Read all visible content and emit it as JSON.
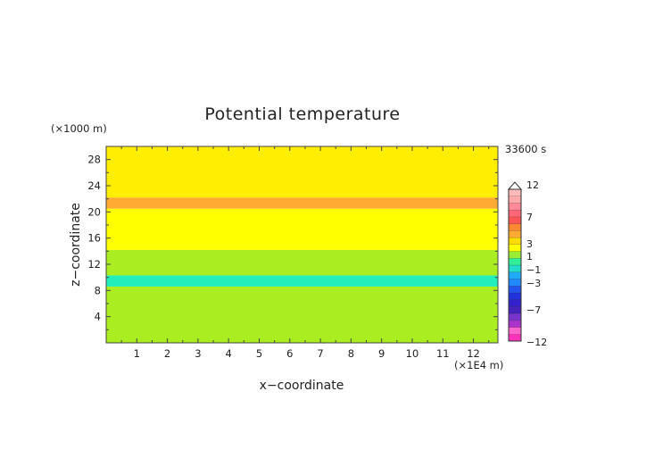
{
  "chart_data": {
    "type": "heatmap",
    "title": "Potential temperature",
    "xlabel": "x−coordinate",
    "ylabel": "z−coordinate",
    "x_unit": "(×1E4 m)",
    "y_unit": "(×1000 m)",
    "time_label": "33600 s",
    "xlim": [
      0,
      12.8
    ],
    "ylim": [
      0,
      30
    ],
    "x_ticks": [
      "1",
      "2",
      "3",
      "4",
      "5",
      "6",
      "7",
      "8",
      "9",
      "10",
      "11",
      "12"
    ],
    "y_ticks": [
      "4",
      "8",
      "12",
      "16",
      "20",
      "24",
      "28"
    ],
    "layers": [
      {
        "z_range": [
          0,
          8.6
        ],
        "value_range": [
          -1,
          0
        ],
        "color": "#aaee22"
      },
      {
        "z_range": [
          8.6,
          10.3
        ],
        "value_range": [
          -2,
          -1
        ],
        "color": "#22eebb"
      },
      {
        "z_range": [
          10.3,
          14.2
        ],
        "value_range": [
          -1,
          0
        ],
        "color": "#aaee22"
      },
      {
        "z_range": [
          14.2,
          20.5
        ],
        "value_range": [
          0,
          1
        ],
        "color": "#ffff00"
      },
      {
        "z_range": [
          20.5,
          22.2
        ],
        "value_range": [
          2,
          3
        ],
        "color": "#ffaa33"
      },
      {
        "z_range": [
          22.2,
          30
        ],
        "value_range": [
          1,
          2
        ],
        "color": "#ffee00"
      }
    ],
    "colorbar": {
      "labels": [
        "12",
        "7",
        "3",
        "1",
        "−1",
        "−3",
        "−7",
        "−12"
      ],
      "min": -12,
      "max": 12,
      "colors": [
        "#ff33bb",
        "#ff66cc",
        "#aa33cc",
        "#7733cc",
        "#4422bb",
        "#3322cc",
        "#2233dd",
        "#2255ee",
        "#2288ff",
        "#22aaff",
        "#22ddcc",
        "#33ee99",
        "#99ee33",
        "#ffff00",
        "#ffdd00",
        "#ffaa33",
        "#ff8833",
        "#ff5555",
        "#ff6677",
        "#ff8899",
        "#ffaaaa",
        "#ffbbbb"
      ]
    }
  }
}
